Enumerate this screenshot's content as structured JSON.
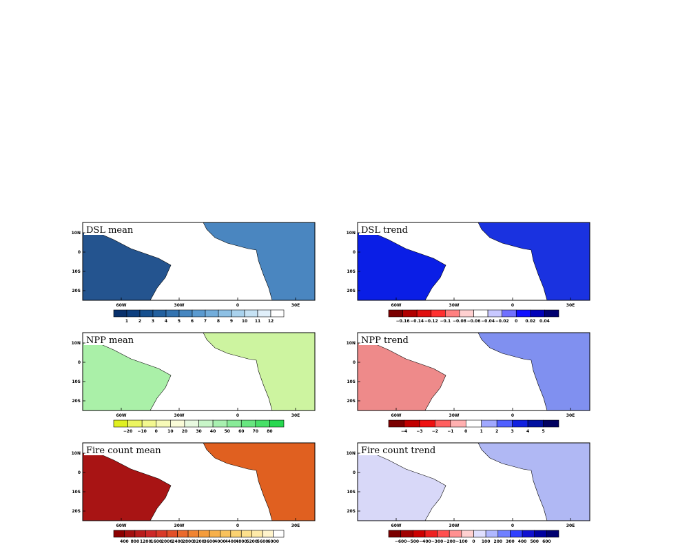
{
  "lat_labels": [
    "10N",
    "0",
    "10S",
    "20S"
  ],
  "lon_labels": [
    "60W",
    "30W",
    "0",
    "30E"
  ],
  "panels": [
    {
      "title": "DSL mean",
      "sa_color": "#24548f",
      "africa_color": "#4a86c0",
      "colorbar": {
        "labels": [
          "1",
          "2",
          "3",
          "4",
          "5",
          "6",
          "7",
          "8",
          "9",
          "10",
          "11",
          "12"
        ],
        "colors": [
          "#08306b",
          "#0d3f7f",
          "#17508f",
          "#22609f",
          "#3373b0",
          "#4686c0",
          "#5a9ad0",
          "#72addb",
          "#8dc0e4",
          "#a9d2ed",
          "#c6e2f4",
          "#e0effa",
          "#ffffff"
        ]
      }
    },
    {
      "title": "DSL trend",
      "sa_color": "#0a1ee6",
      "africa_color": "#1a32e0",
      "colorbar": {
        "labels": [
          "−0.16",
          "−0.14",
          "−0.12",
          "−0.1",
          "−0.08",
          "−0.06",
          "−0.04",
          "−0.02",
          "0",
          "0.02",
          "0.04"
        ],
        "colors": [
          "#7a0000",
          "#b00000",
          "#e01010",
          "#ff3030",
          "#ff8080",
          "#ffd0d0",
          "#ffffff",
          "#c8c8ff",
          "#7070ff",
          "#1010ff",
          "#0000b8",
          "#000070"
        ]
      }
    },
    {
      "title": "NPP mean",
      "sa_color": "#aaf0a8",
      "africa_color": "#cdf4a0",
      "colorbar": {
        "labels": [
          "−20",
          "−10",
          "0",
          "10",
          "20",
          "30",
          "40",
          "50",
          "60",
          "70",
          "80"
        ],
        "colors": [
          "#e0f020",
          "#ecf560",
          "#f3f890",
          "#f7fab8",
          "#fafcd8",
          "#e8fae0",
          "#c8f5c8",
          "#a8f0b0",
          "#88eb98",
          "#68e680",
          "#48e068",
          "#28d850"
        ]
      }
    },
    {
      "title": "NPP trend",
      "sa_color": "#ee8a8a",
      "africa_color": "#8090f0",
      "colorbar": {
        "labels": [
          "−4",
          "−3",
          "−2",
          "−1",
          "0",
          "1",
          "2",
          "3",
          "4",
          "5"
        ],
        "colors": [
          "#7a0000",
          "#c00000",
          "#ee1010",
          "#ff6060",
          "#ffb0b0",
          "#ffffff",
          "#a0a8ff",
          "#5060ff",
          "#1020e0",
          "#0010a0",
          "#000060"
        ]
      }
    },
    {
      "title": "Fire count mean",
      "sa_color": "#a81414",
      "africa_color": "#e06020",
      "colorbar": {
        "labels": [
          "400",
          "800",
          "1200",
          "1600",
          "2000",
          "2400",
          "2800",
          "3200",
          "3600",
          "4000",
          "4400",
          "4800",
          "5200",
          "5600",
          "6000"
        ],
        "colors": [
          "#8b0000",
          "#a31010",
          "#b81c1c",
          "#cc2828",
          "#d83a28",
          "#e25028",
          "#ea6a2c",
          "#f08432",
          "#f49c3c",
          "#f7b04a",
          "#f9c25c",
          "#fbd272",
          "#fde08c",
          "#feeaa8",
          "#fff4cc",
          "#ffffff"
        ]
      }
    },
    {
      "title": "Fire count trend",
      "sa_color": "#d8d8f8",
      "africa_color": "#b0b8f4",
      "colorbar": {
        "labels": [
          "−600",
          "−500",
          "−400",
          "−300",
          "−200",
          "−100",
          "0",
          "100",
          "200",
          "300",
          "400",
          "500",
          "600"
        ],
        "colors": [
          "#7a0000",
          "#a00000",
          "#cc0000",
          "#ee2020",
          "#ff5050",
          "#ff9090",
          "#ffd0d0",
          "#e0e0ff",
          "#b0b8ff",
          "#7080ff",
          "#3040ff",
          "#1010d0",
          "#0000a0",
          "#000070"
        ]
      }
    }
  ]
}
